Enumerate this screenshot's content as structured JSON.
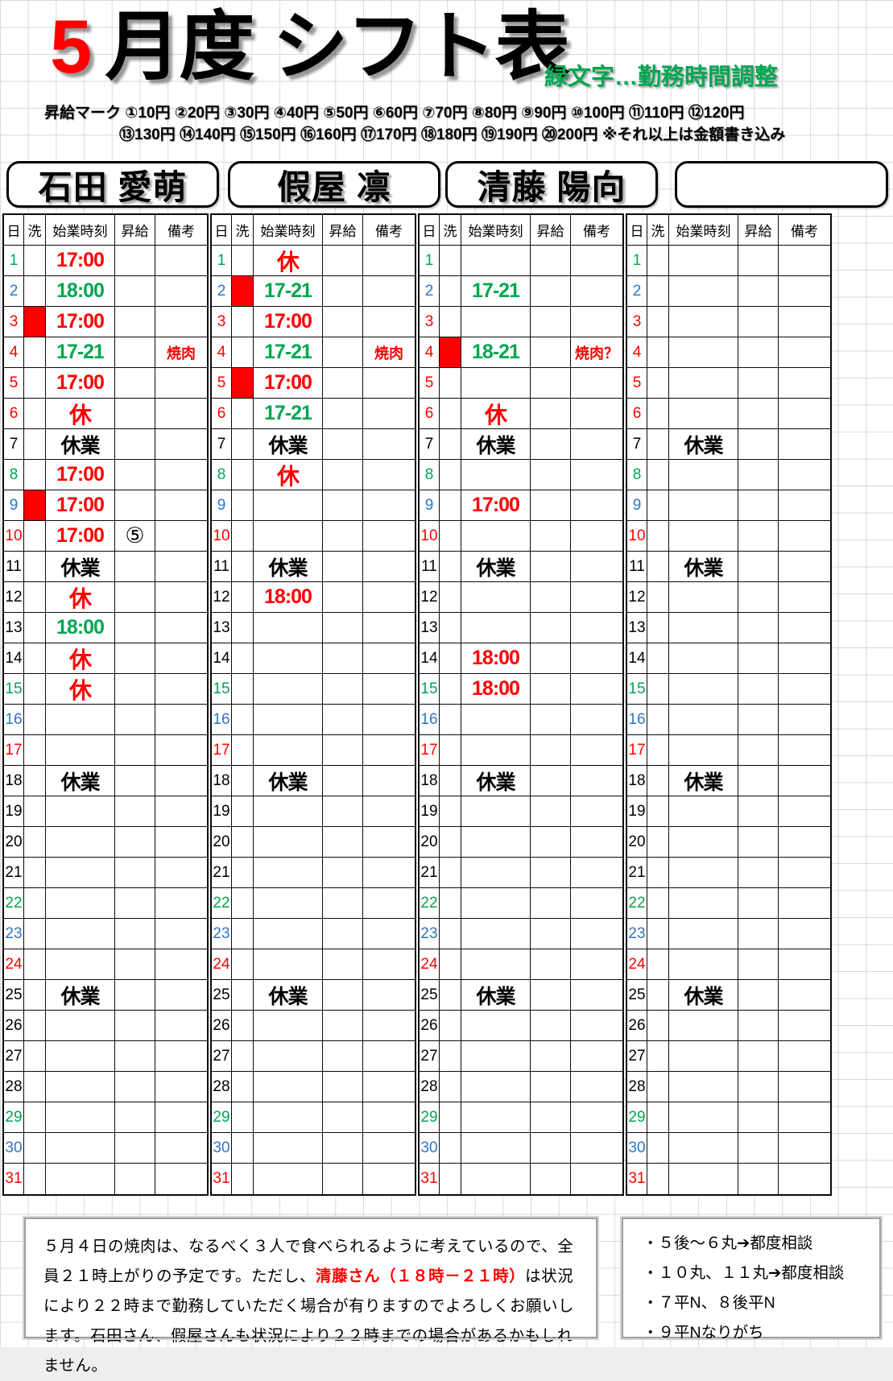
{
  "title": {
    "month": "5",
    "rest": "月度 シフト表",
    "green_note": "緑文字…勤務時間調整"
  },
  "legend": {
    "line1": "昇給マーク ①10円 ②20円 ③30円 ④40円 ⑤50円 ⑥60円 ⑦70円 ⑧80円 ⑨90円 ⑩100円 ⑪110円 ⑫120円",
    "line2": "⑬130円 ⑭140円 ⑮150円 ⑯160円 ⑰170円 ⑱180円 ⑲190円 ⑳200円 ※それ以上は金額書き込み"
  },
  "table": {
    "headers": [
      "日",
      "洗",
      "始業時刻",
      "昇給",
      "備考"
    ],
    "day_count": 31,
    "day_colors": {
      "green": [
        1,
        8,
        15,
        22,
        29
      ],
      "blue": [
        2,
        9,
        16,
        23,
        30
      ],
      "red": [
        3,
        4,
        5,
        6,
        10,
        17,
        24,
        31
      ]
    }
  },
  "colors": {
    "accent_red": "#FF0000",
    "accent_green": "#00A651",
    "accent_blue": "#2E75C6"
  },
  "employees": [
    {
      "name": "石田 愛萌",
      "shifts": {
        "1": {
          "time": "17:00",
          "color": "red"
        },
        "2": {
          "time": "18:00",
          "color": "green"
        },
        "3": {
          "time": "17:00",
          "color": "red",
          "wash": true
        },
        "4": {
          "time": "17-21",
          "color": "green",
          "note": "焼肉"
        },
        "5": {
          "time": "17:00",
          "color": "red"
        },
        "6": {
          "time": "休",
          "color": "red"
        },
        "7": {
          "time": "休業",
          "color": "black"
        },
        "8": {
          "time": "17:00",
          "color": "red"
        },
        "9": {
          "time": "17:00",
          "color": "red",
          "wash": true
        },
        "10": {
          "time": "17:00",
          "color": "red",
          "raise": "⑤"
        },
        "11": {
          "time": "休業",
          "color": "black"
        },
        "12": {
          "time": "休",
          "color": "red"
        },
        "13": {
          "time": "18:00",
          "color": "green"
        },
        "14": {
          "time": "休",
          "color": "red"
        },
        "15": {
          "time": "休",
          "color": "red"
        },
        "18": {
          "time": "休業",
          "color": "black"
        },
        "25": {
          "time": "休業",
          "color": "black"
        }
      }
    },
    {
      "name": "假屋 凛",
      "shifts": {
        "1": {
          "time": "休",
          "color": "red"
        },
        "2": {
          "time": "17-21",
          "color": "green",
          "wash": true
        },
        "3": {
          "time": "17:00",
          "color": "red"
        },
        "4": {
          "time": "17-21",
          "color": "green",
          "note": "焼肉"
        },
        "5": {
          "time": "17:00",
          "color": "red",
          "wash": true
        },
        "6": {
          "time": "17-21",
          "color": "green"
        },
        "7": {
          "time": "休業",
          "color": "black"
        },
        "8": {
          "time": "休",
          "color": "red"
        },
        "11": {
          "time": "休業",
          "color": "black"
        },
        "12": {
          "time": "18:00",
          "color": "red"
        },
        "18": {
          "time": "休業",
          "color": "black"
        },
        "25": {
          "time": "休業",
          "color": "black"
        }
      }
    },
    {
      "name": "清藤 陽向",
      "shifts": {
        "2": {
          "time": "17-21",
          "color": "green"
        },
        "4": {
          "time": "18-21",
          "color": "green",
          "wash": true,
          "note": "焼肉？"
        },
        "6": {
          "time": "休",
          "color": "red"
        },
        "7": {
          "time": "休業",
          "color": "black"
        },
        "9": {
          "time": "17:00",
          "color": "red"
        },
        "11": {
          "time": "休業",
          "color": "black"
        },
        "14": {
          "time": "18:00",
          "color": "red"
        },
        "15": {
          "time": "18:00",
          "color": "red"
        },
        "18": {
          "time": "休業",
          "color": "black"
        },
        "25": {
          "time": "休業",
          "color": "black"
        }
      }
    },
    {
      "name": "",
      "shifts": {
        "7": {
          "time": "休業",
          "color": "black"
        },
        "11": {
          "time": "休業",
          "color": "black"
        },
        "18": {
          "time": "休業",
          "color": "black"
        },
        "25": {
          "time": "休業",
          "color": "black"
        }
      }
    }
  ],
  "footnote": {
    "pre": "５月４日の焼肉は、なるべく３人で食べられるように考えているので、全員２１時上がりの予定です。ただし、",
    "highlight": "清藤さん（１８時－２１時）",
    "post": "は状況により２２時まで勤務していただく場合が有りますのでよろしくお願いします。石田さん、假屋さんも状況により２２時までの場合があるかもしれません。"
  },
  "side_notes": [
    "・５後～６丸➔都度相談",
    "・１０丸、１１丸➔都度相談",
    "・７平N、８後平N",
    "・９平Nなりがち"
  ]
}
